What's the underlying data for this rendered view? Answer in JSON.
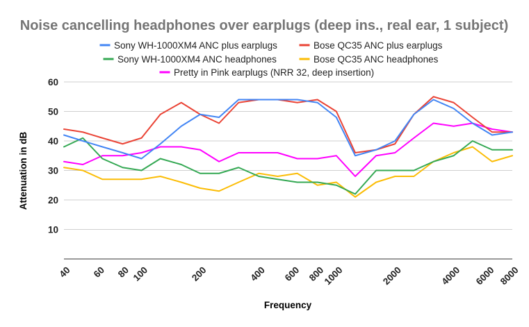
{
  "chart_data": {
    "type": "line",
    "title": "Noise cancelling headphones over earplugs (deep ins., real ear, 1 subject)",
    "xlabel": "Frequency",
    "ylabel": "Attenuation in dB",
    "x_scale": "log",
    "xlim": [
      40,
      8000
    ],
    "ylim": [
      0,
      60
    ],
    "y_ticks": [
      10,
      20,
      30,
      40,
      50,
      60
    ],
    "x_ticks": [
      40,
      60,
      80,
      100,
      200,
      400,
      600,
      800,
      1000,
      2000,
      4000,
      6000,
      8000
    ],
    "grid": "horizontal",
    "legend_position": "top",
    "x": [
      40,
      50,
      63,
      80,
      100,
      125,
      160,
      200,
      250,
      315,
      400,
      500,
      630,
      800,
      1000,
      1250,
      1600,
      2000,
      2500,
      3150,
      4000,
      5000,
      6300,
      8000
    ],
    "series": [
      {
        "name": "Sony WH-1000XM4 ANC plus earplugs",
        "color": "#4285f4",
        "values": [
          42,
          40,
          38,
          36,
          34,
          39,
          45,
          49,
          48,
          54,
          54,
          54,
          54,
          53,
          48,
          35,
          37,
          40,
          49,
          54,
          51,
          46,
          42,
          43
        ]
      },
      {
        "name": "Bose QC35 ANC plus earplugs",
        "color": "#ea4335",
        "values": [
          44,
          43,
          41,
          39,
          41,
          49,
          53,
          49,
          46,
          53,
          54,
          54,
          53,
          54,
          50,
          36,
          37,
          39,
          49,
          55,
          53,
          48,
          43,
          43
        ]
      },
      {
        "name": "Sony WH-1000XM4 ANC headphones",
        "color": "#34a853",
        "values": [
          38,
          41,
          34,
          31,
          30,
          34,
          32,
          29,
          29,
          31,
          28,
          27,
          26,
          26,
          25,
          22,
          30,
          30,
          30,
          33,
          35,
          40,
          37,
          37
        ]
      },
      {
        "name": "Bose QC35 ANC headphones",
        "color": "#fbbc04",
        "values": [
          31,
          30,
          27,
          27,
          27,
          28,
          26,
          24,
          23,
          26,
          29,
          28,
          29,
          25,
          26,
          21,
          26,
          28,
          28,
          33,
          36,
          38,
          33,
          35
        ]
      },
      {
        "name": "Pretty in Pink earplugs (NRR 32, deep insertion)",
        "color": "#ff00ff",
        "values": [
          33,
          32,
          35,
          35,
          36,
          38,
          38,
          37,
          33,
          36,
          36,
          36,
          34,
          34,
          35,
          28,
          35,
          36,
          41,
          46,
          45,
          46,
          44,
          43
        ]
      }
    ]
  }
}
